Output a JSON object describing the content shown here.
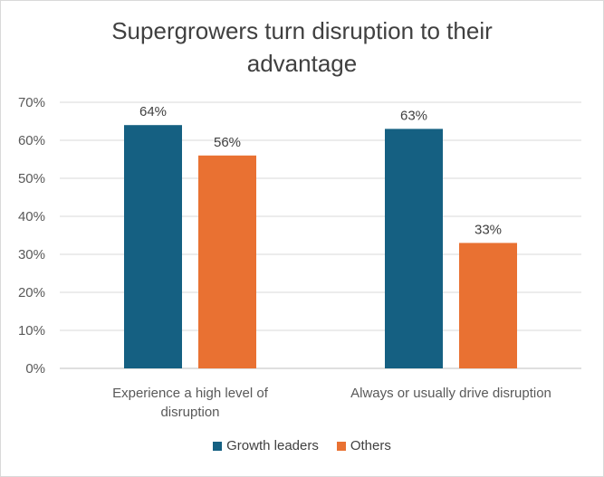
{
  "chart_data": {
    "type": "bar",
    "title_lines": [
      "Supergrowers turn disruption to their",
      "advantage"
    ],
    "categories": [
      {
        "lines": [
          "Experience a high level of",
          "disruption"
        ]
      },
      {
        "lines": [
          "Always or usually drive disruption"
        ]
      }
    ],
    "series": [
      {
        "name": "Growth leaders",
        "color": "#156082",
        "values": [
          64,
          63
        ],
        "labels": [
          "64%",
          "63%"
        ]
      },
      {
        "name": "Others",
        "color": "#e97132",
        "values": [
          56,
          33
        ],
        "labels": [
          "56%",
          "33%"
        ]
      }
    ],
    "yticks": [
      {
        "value": 0,
        "label": "0%"
      },
      {
        "value": 10,
        "label": "10%"
      },
      {
        "value": 20,
        "label": "20%"
      },
      {
        "value": 30,
        "label": "30%"
      },
      {
        "value": 40,
        "label": "40%"
      },
      {
        "value": 50,
        "label": "50%"
      },
      {
        "value": 60,
        "label": "60%"
      },
      {
        "value": 70,
        "label": "70%"
      }
    ],
    "ylim": [
      0,
      70
    ],
    "xlabel": "",
    "ylabel": "",
    "grid": true,
    "legend_position": "bottom"
  }
}
